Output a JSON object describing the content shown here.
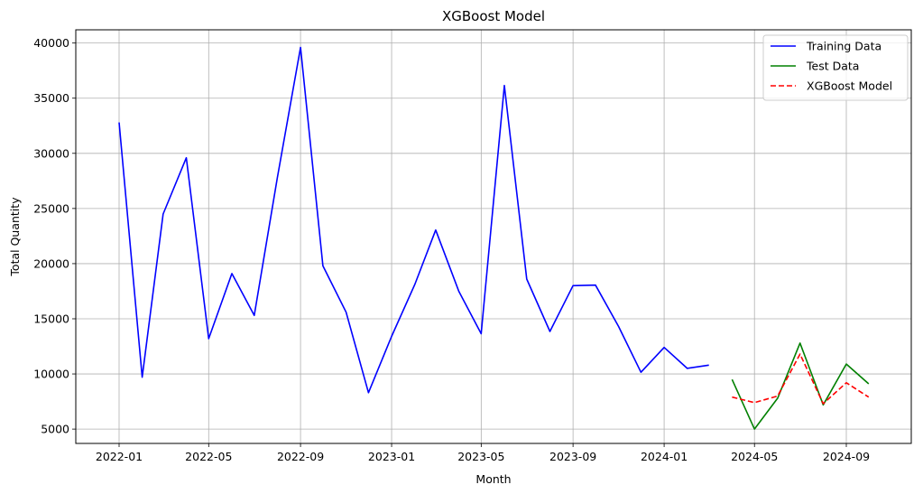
{
  "chart_data": {
    "type": "line",
    "title": "XGBoost Model",
    "xlabel": "Month",
    "ylabel": "Total Quantity",
    "grid": true,
    "legend_position": "top-right",
    "x_ticks": [
      "2022-01",
      "2022-05",
      "2022-09",
      "2023-01",
      "2023-05",
      "2023-09",
      "2024-01",
      "2024-05",
      "2024-09"
    ],
    "y_ticks": [
      5000,
      10000,
      15000,
      20000,
      25000,
      30000,
      35000,
      40000
    ],
    "ylim": [
      3700,
      41200
    ],
    "xlim": [
      "2021-11-04",
      "2024-11-27"
    ],
    "series": [
      {
        "name": "Training Data",
        "color": "#0000ff",
        "dash": "solid",
        "x": [
          "2022-01",
          "2022-02",
          "2022-03",
          "2022-04",
          "2022-05",
          "2022-06",
          "2022-07",
          "2022-08",
          "2022-09",
          "2022-10",
          "2022-11",
          "2022-12",
          "2023-01",
          "2023-02",
          "2023-03",
          "2023-04",
          "2023-05",
          "2023-06",
          "2023-07",
          "2023-08",
          "2023-09",
          "2023-10",
          "2023-11",
          "2023-12",
          "2024-01",
          "2024-02",
          "2024-03"
        ],
        "values": [
          32800,
          9700,
          24500,
          29600,
          13200,
          19100,
          15300,
          27800,
          39600,
          19800,
          15600,
          8300,
          13400,
          18100,
          23050,
          17500,
          13650,
          36150,
          18600,
          13850,
          18000,
          18050,
          14300,
          10150,
          12400,
          10500,
          10800
        ]
      },
      {
        "name": "Test Data",
        "color": "#008000",
        "dash": "solid",
        "x": [
          "2024-04",
          "2024-05",
          "2024-06",
          "2024-07",
          "2024-08",
          "2024-09",
          "2024-10"
        ],
        "values": [
          9500,
          5000,
          7800,
          12800,
          7200,
          10900,
          9100
        ]
      },
      {
        "name": "XGBoost Model",
        "color": "#ff0000",
        "dash": "dashed",
        "x": [
          "2024-04",
          "2024-05",
          "2024-06",
          "2024-07",
          "2024-08",
          "2024-09",
          "2024-10"
        ],
        "values": [
          7900,
          7400,
          8000,
          11800,
          7300,
          9200,
          7900
        ]
      }
    ]
  }
}
